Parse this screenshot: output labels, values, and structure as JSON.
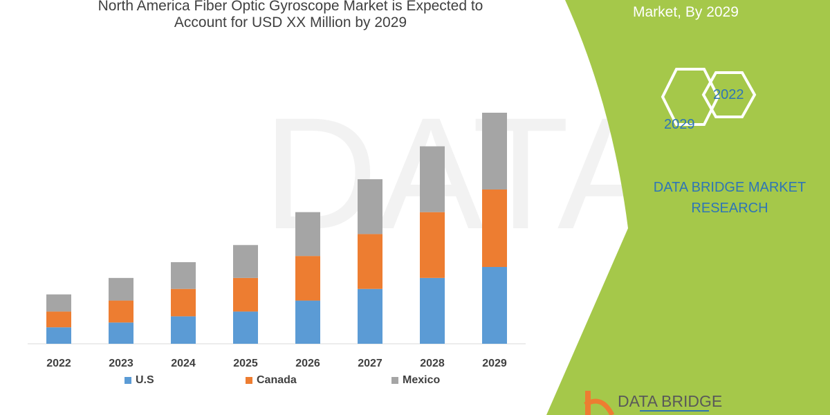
{
  "header": {
    "title_line1": "North America Fiber Optic Gyroscope Market is Expected to",
    "title_line2": "Account for USD XX Million by 2029"
  },
  "side_panel": {
    "title_fragment": "Market, By 2029",
    "hex_2022": "2022",
    "hex_2029": "2029",
    "brand_line1": "DATA BRIDGE MARKET",
    "brand_line2": "RESEARCH",
    "logo_text": "DATA BRIDGE",
    "panel_color": "#a5c84a"
  },
  "chart_data": {
    "type": "bar",
    "stacked": true,
    "title": "North America Fiber Optic Gyroscope Market is Expected to Account for USD XX Million by 2029",
    "categories": [
      "2022",
      "2023",
      "2024",
      "2025",
      "2026",
      "2027",
      "2028",
      "2029"
    ],
    "series": [
      {
        "name": "U.S",
        "color": "#5b9bd5",
        "values": [
          24,
          31,
          40,
          47,
          63,
          80,
          96,
          112
        ]
      },
      {
        "name": "Canada",
        "color": "#ed7d31",
        "values": [
          23,
          32,
          40,
          49,
          65,
          80,
          96,
          113
        ]
      },
      {
        "name": "Mexico",
        "color": "#a5a5a5",
        "values": [
          25,
          33,
          39,
          48,
          64,
          80,
          96,
          112
        ]
      }
    ],
    "ylim": [
      0,
      340
    ],
    "y_axis_shown": false,
    "grid": false,
    "legend_position": "bottom"
  }
}
